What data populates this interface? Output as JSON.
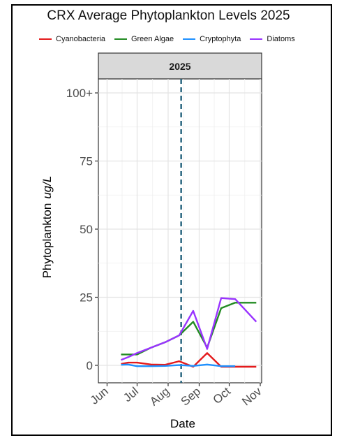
{
  "chart_data": {
    "type": "line",
    "title": "CRX Average Phytoplankton Levels 2025",
    "facet_label": "2025",
    "xlabel": "Date",
    "ylabel_main": "Phytoplankton",
    "ylabel_unit": "ug/L",
    "ylim": [
      0,
      100
    ],
    "y_ticks": [
      {
        "value": 0,
        "label": "0"
      },
      {
        "value": 25,
        "label": "25"
      },
      {
        "value": 50,
        "label": "50"
      },
      {
        "value": 75,
        "label": "75"
      },
      {
        "value": 100,
        "label": "100+"
      }
    ],
    "x_ticks": [
      {
        "date": "2025-06-01",
        "label": "Jun"
      },
      {
        "date": "2025-07-01",
        "label": "Jul"
      },
      {
        "date": "2025-08-01",
        "label": "Aug"
      },
      {
        "date": "2025-09-01",
        "label": "Sep"
      },
      {
        "date": "2025-10-01",
        "label": "Oct"
      },
      {
        "date": "2025-11-01",
        "label": "Nov"
      }
    ],
    "xlim": [
      "2025-05-31",
      "2025-11-01"
    ],
    "vline": {
      "date": "2025-08-14",
      "color": "#1f5f7a"
    },
    "grid": true,
    "legend_position": "top",
    "series": [
      {
        "name": "Cyanobacteria",
        "color": "#e41a1c",
        "points": [
          {
            "date": "2025-06-15",
            "y": 0.5
          },
          {
            "date": "2025-06-22",
            "y": 1.0
          },
          {
            "date": "2025-07-01",
            "y": 1.0
          },
          {
            "date": "2025-07-15",
            "y": 0.3
          },
          {
            "date": "2025-07-29",
            "y": 0.2
          },
          {
            "date": "2025-08-12",
            "y": 1.5
          },
          {
            "date": "2025-08-26",
            "y": -0.5
          },
          {
            "date": "2025-09-09",
            "y": 4.5
          },
          {
            "date": "2025-09-23",
            "y": -0.5
          },
          {
            "date": "2025-10-07",
            "y": -0.5
          },
          {
            "date": "2025-10-28",
            "y": -0.5
          }
        ]
      },
      {
        "name": "Green Algae",
        "color": "#228b22",
        "points": [
          {
            "date": "2025-06-15",
            "y": 4.0
          },
          {
            "date": "2025-06-22",
            "y": 4.0
          },
          {
            "date": "2025-07-01",
            "y": 4.0
          },
          {
            "date": "2025-07-15",
            "y": 6.5
          },
          {
            "date": "2025-07-29",
            "y": 8.5
          },
          {
            "date": "2025-08-12",
            "y": 11.0
          },
          {
            "date": "2025-08-26",
            "y": 16.0
          },
          {
            "date": "2025-09-09",
            "y": 6.5
          },
          {
            "date": "2025-09-23",
            "y": 21.0
          },
          {
            "date": "2025-10-07",
            "y": 23.0
          },
          {
            "date": "2025-10-28",
            "y": 23.0
          }
        ]
      },
      {
        "name": "Cryptophyta",
        "color": "#1e90ff",
        "points": [
          {
            "date": "2025-06-15",
            "y": 0.2
          },
          {
            "date": "2025-06-22",
            "y": 0.3
          },
          {
            "date": "2025-07-01",
            "y": -0.3
          },
          {
            "date": "2025-07-15",
            "y": -0.3
          },
          {
            "date": "2025-07-29",
            "y": -0.2
          },
          {
            "date": "2025-08-12",
            "y": 0.1
          },
          {
            "date": "2025-08-26",
            "y": -0.2
          },
          {
            "date": "2025-09-09",
            "y": 0.3
          },
          {
            "date": "2025-09-23",
            "y": -0.3
          },
          {
            "date": "2025-10-07",
            "y": -0.3
          }
        ]
      },
      {
        "name": "Diatoms",
        "color": "#9933ff",
        "points": [
          {
            "date": "2025-06-15",
            "y": 2.0
          },
          {
            "date": "2025-06-22",
            "y": 3.0
          },
          {
            "date": "2025-07-01",
            "y": 4.5
          },
          {
            "date": "2025-07-15",
            "y": 6.5
          },
          {
            "date": "2025-07-29",
            "y": 8.5
          },
          {
            "date": "2025-08-12",
            "y": 11.0
          },
          {
            "date": "2025-08-26",
            "y": 20.0
          },
          {
            "date": "2025-09-09",
            "y": 6.0
          },
          {
            "date": "2025-09-23",
            "y": 24.7
          },
          {
            "date": "2025-10-07",
            "y": 24.3
          },
          {
            "date": "2025-10-28",
            "y": 16.0
          }
        ]
      }
    ]
  }
}
